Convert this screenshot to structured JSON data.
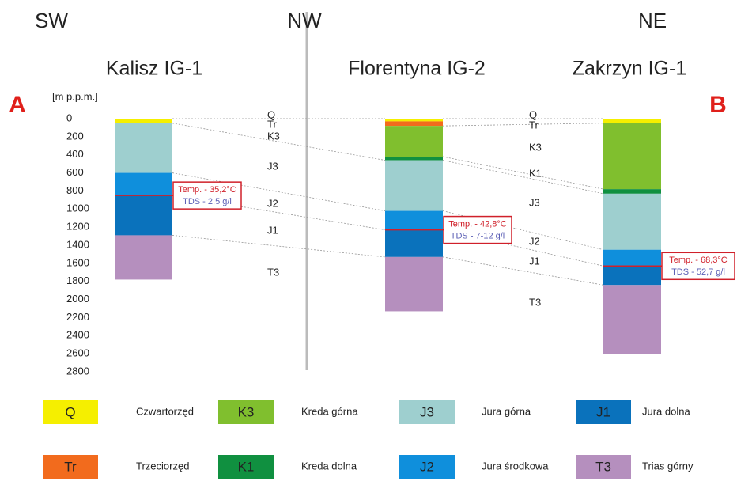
{
  "directions": [
    "SW",
    "NW",
    "NE"
  ],
  "markers": [
    "A",
    "B"
  ],
  "depth_axis": {
    "label": "[m p.p.m.]",
    "ticks": [
      0,
      200,
      400,
      600,
      800,
      1000,
      1200,
      1400,
      1600,
      1800,
      2000,
      2200,
      2400,
      2600,
      2800
    ]
  },
  "wells": [
    {
      "name": "Kalisz IG-1",
      "water_depth": 850,
      "temp": "Temp. - 35,2°C",
      "tds": "TDS - 2,5 g/l",
      "layers": [
        {
          "unit": "Q",
          "top": 0,
          "bottom": 50
        },
        {
          "unit": "J3",
          "top": 50,
          "bottom": 600
        },
        {
          "unit": "J2",
          "top": 600,
          "bottom": 850
        },
        {
          "unit": "J1",
          "top": 850,
          "bottom": 1290
        },
        {
          "unit": "T3",
          "top": 1290,
          "bottom": 1780
        }
      ]
    },
    {
      "name": "Florentyna IG-2",
      "water_depth": 1230,
      "temp": "Temp. - 42,8°C",
      "tds": "TDS - 7-12 g/l",
      "layers": [
        {
          "unit": "Q",
          "top": 0,
          "bottom": 30
        },
        {
          "unit": "Tr",
          "top": 30,
          "bottom": 80
        },
        {
          "unit": "K3",
          "top": 80,
          "bottom": 420
        },
        {
          "unit": "K1",
          "top": 420,
          "bottom": 460
        },
        {
          "unit": "J3",
          "top": 460,
          "bottom": 1020
        },
        {
          "unit": "J2",
          "top": 1020,
          "bottom": 1230
        },
        {
          "unit": "J1",
          "top": 1230,
          "bottom": 1530
        },
        {
          "unit": "T3",
          "top": 1530,
          "bottom": 2130
        }
      ]
    },
    {
      "name": "Zakrzyn IG-1",
      "water_depth": 1630,
      "temp": "Temp. - 68,3°C",
      "tds": "TDS - 52,7 g/l",
      "layers": [
        {
          "unit": "Q",
          "top": 0,
          "bottom": 50
        },
        {
          "unit": "K3",
          "top": 50,
          "bottom": 780
        },
        {
          "unit": "K1",
          "top": 780,
          "bottom": 830
        },
        {
          "unit": "J3",
          "top": 830,
          "bottom": 1450
        },
        {
          "unit": "J2",
          "top": 1450,
          "bottom": 1630
        },
        {
          "unit": "J1",
          "top": 1630,
          "bottom": 1840
        },
        {
          "unit": "T3",
          "top": 1840,
          "bottom": 2600
        }
      ]
    }
  ],
  "section_labels_left": [
    "Q",
    "Tr",
    "K3",
    "J3",
    "J2",
    "J1",
    "T3"
  ],
  "section_labels_right": [
    "Q",
    "Tr",
    "K3",
    "K1",
    "J3",
    "J2",
    "J1",
    "T3"
  ],
  "legend": [
    {
      "code": "Q",
      "name": "Czwartorzęd",
      "color": "#f5ef00"
    },
    {
      "code": "K3",
      "name": "Kreda górna",
      "color": "#80bf2e"
    },
    {
      "code": "J3",
      "name": "Jura górna",
      "color": "#9ecfcf"
    },
    {
      "code": "J1",
      "name": "Jura dolna",
      "color": "#0a72bc"
    },
    {
      "code": "Tr",
      "name": "Trzeciorzęd",
      "color": "#f26b1d"
    },
    {
      "code": "K1",
      "name": "Kreda dolna",
      "color": "#109040"
    },
    {
      "code": "J2",
      "name": "Jura środkowa",
      "color": "#0f8fdc"
    },
    {
      "code": "T3",
      "name": "Trias górny",
      "color": "#b58fbe"
    }
  ]
}
